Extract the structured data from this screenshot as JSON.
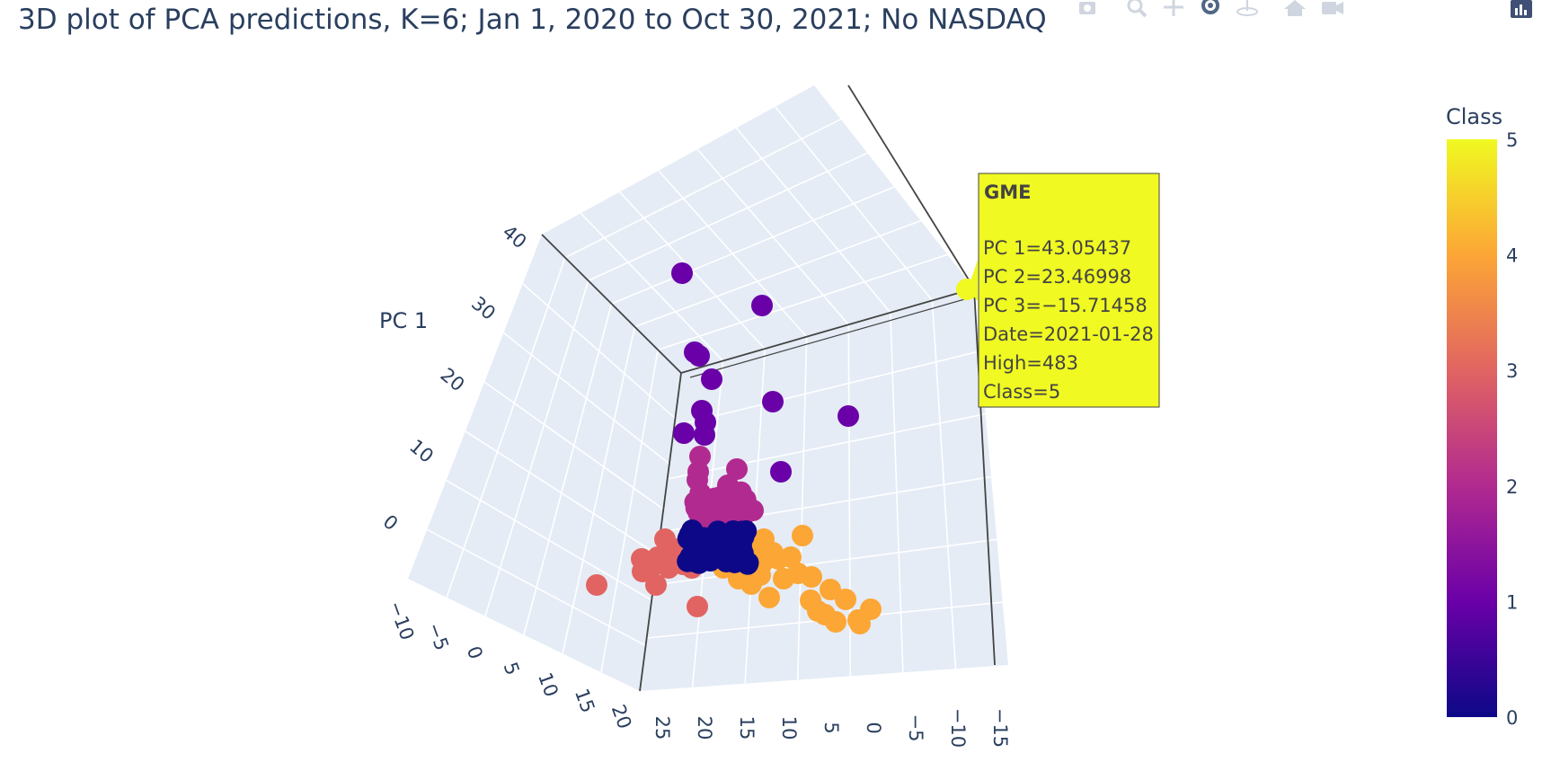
{
  "title": "3D plot of PCA predictions, K=6; Jan 1, 2020 to Oct 30, 2021; No NASDAQ",
  "modebar": [
    "camera-icon",
    "zoom-icon",
    "pan-icon",
    "orbit-icon",
    "turntable-icon",
    "home-icon",
    "video-icon",
    "plotly-logo-icon"
  ],
  "chart_data": {
    "type": "scatter3d",
    "xlabel": "PC 1",
    "ylabel": "",
    "zlabel": "",
    "pc1_ticks": [
      "0",
      "10",
      "20",
      "30",
      "40"
    ],
    "front_left_ticks": [
      "−10",
      "−5",
      "0",
      "5",
      "10",
      "15",
      "20"
    ],
    "front_right_ticks": [
      "25",
      "20",
      "15",
      "10",
      "5",
      "0",
      "−5",
      "−10",
      "−15"
    ],
    "colorbar": {
      "title": "Class",
      "ticks": [
        "0",
        "1",
        "2",
        "3",
        "4",
        "5"
      ],
      "range": [
        0,
        5
      ],
      "colors": [
        "#0d0887",
        "#6a00a8",
        "#b12a90",
        "#e16462",
        "#fca636",
        "#f0f921"
      ]
    },
    "class_colors": {
      "0": "#0d0887",
      "1": "#6a00a8",
      "2": "#b12a90",
      "3": "#e16462",
      "4": "#fca636",
      "5": "#f0f921"
    },
    "hover": {
      "ticker": "GME",
      "lines": [
        "PC 1=43.05437",
        "PC 2=23.46998",
        "PC 3=−15.71458",
        "Date=2021-01-28",
        "High=483",
        "Class=5"
      ],
      "class": 5
    }
  }
}
